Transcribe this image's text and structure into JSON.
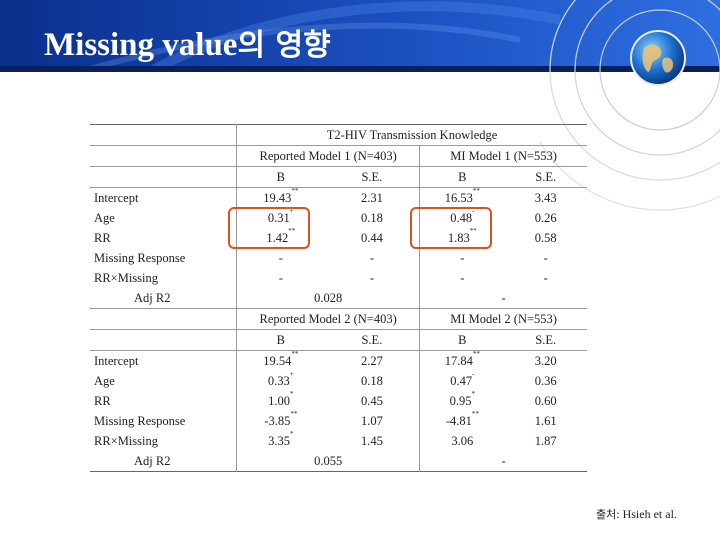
{
  "slide": {
    "title_en": "Missing value",
    "title_ko": "의 영향",
    "source_ko": "출처",
    "source_rest": ": Hsieh et al."
  },
  "table": {
    "caption": "T2-HIV Transmission Knowledge",
    "col_b": "B",
    "col_se": "S.E.",
    "model1": {
      "reported_header": "Reported Model 1 (N=403)",
      "mi_header": "MI Model 1 (N=553)",
      "rows": [
        {
          "label": "Intercept",
          "b1": "19.43",
          "b1_sig": "**",
          "se1": "2.31",
          "b2": "16.53",
          "b2_sig": "**",
          "se2": "3.43"
        },
        {
          "label": "Age",
          "b1": "0.31",
          "b1_sig": "+",
          "se1": "0.18",
          "b2": "0.48",
          "b2_sig": "-",
          "se2": "0.26"
        },
        {
          "label": "RR",
          "b1": "1.42",
          "b1_sig": "**",
          "se1": "0.44",
          "b2": "1.83",
          "b2_sig": "**",
          "se2": "0.58"
        },
        {
          "label": "Missing Response",
          "b1": "-",
          "b1_sig": "",
          "se1": "-",
          "b2": "-",
          "b2_sig": "",
          "se2": "-"
        },
        {
          "label": "RR×Missing",
          "b1": "-",
          "b1_sig": "",
          "se1": "-",
          "b2": "-",
          "b2_sig": "",
          "se2": "-"
        }
      ],
      "adj_label": "Adj R2",
      "adj_reported": "0.028",
      "adj_mi": "-"
    },
    "model2": {
      "reported_header": "Reported Model 2 (N=403)",
      "mi_header": "MI Model 2 (N=553)",
      "rows": [
        {
          "label": "Intercept",
          "b1": "19.54",
          "b1_sig": "**",
          "se1": "2.27",
          "b2": "17.84",
          "b2_sig": "**",
          "se2": "3.20"
        },
        {
          "label": "Age",
          "b1": "0.33",
          "b1_sig": "+",
          "se1": "0.18",
          "b2": "0.47",
          "b2_sig": "-",
          "se2": "0.36"
        },
        {
          "label": "RR",
          "b1": "1.00",
          "b1_sig": "*",
          "se1": "0.45",
          "b2": "0.95",
          "b2_sig": "*",
          "se2": "0.60"
        },
        {
          "label": "Missing Response",
          "b1": "-3.85",
          "b1_sig": "**",
          "se1": "1.07",
          "b2": "-4.81",
          "b2_sig": "**",
          "se2": "1.61"
        },
        {
          "label": "RR×Missing",
          "b1": "3.35",
          "b1_sig": "*",
          "se1": "1.45",
          "b2": "3.06",
          "b2_sig": "",
          "se2": "1.87"
        }
      ],
      "adj_label": "Adj R2",
      "adj_reported": "0.055",
      "adj_mi": "-"
    }
  },
  "colors": {
    "header_blue": "#1b4fc0",
    "highlight": "#d9531e"
  },
  "icons": [
    "globe-icon"
  ]
}
